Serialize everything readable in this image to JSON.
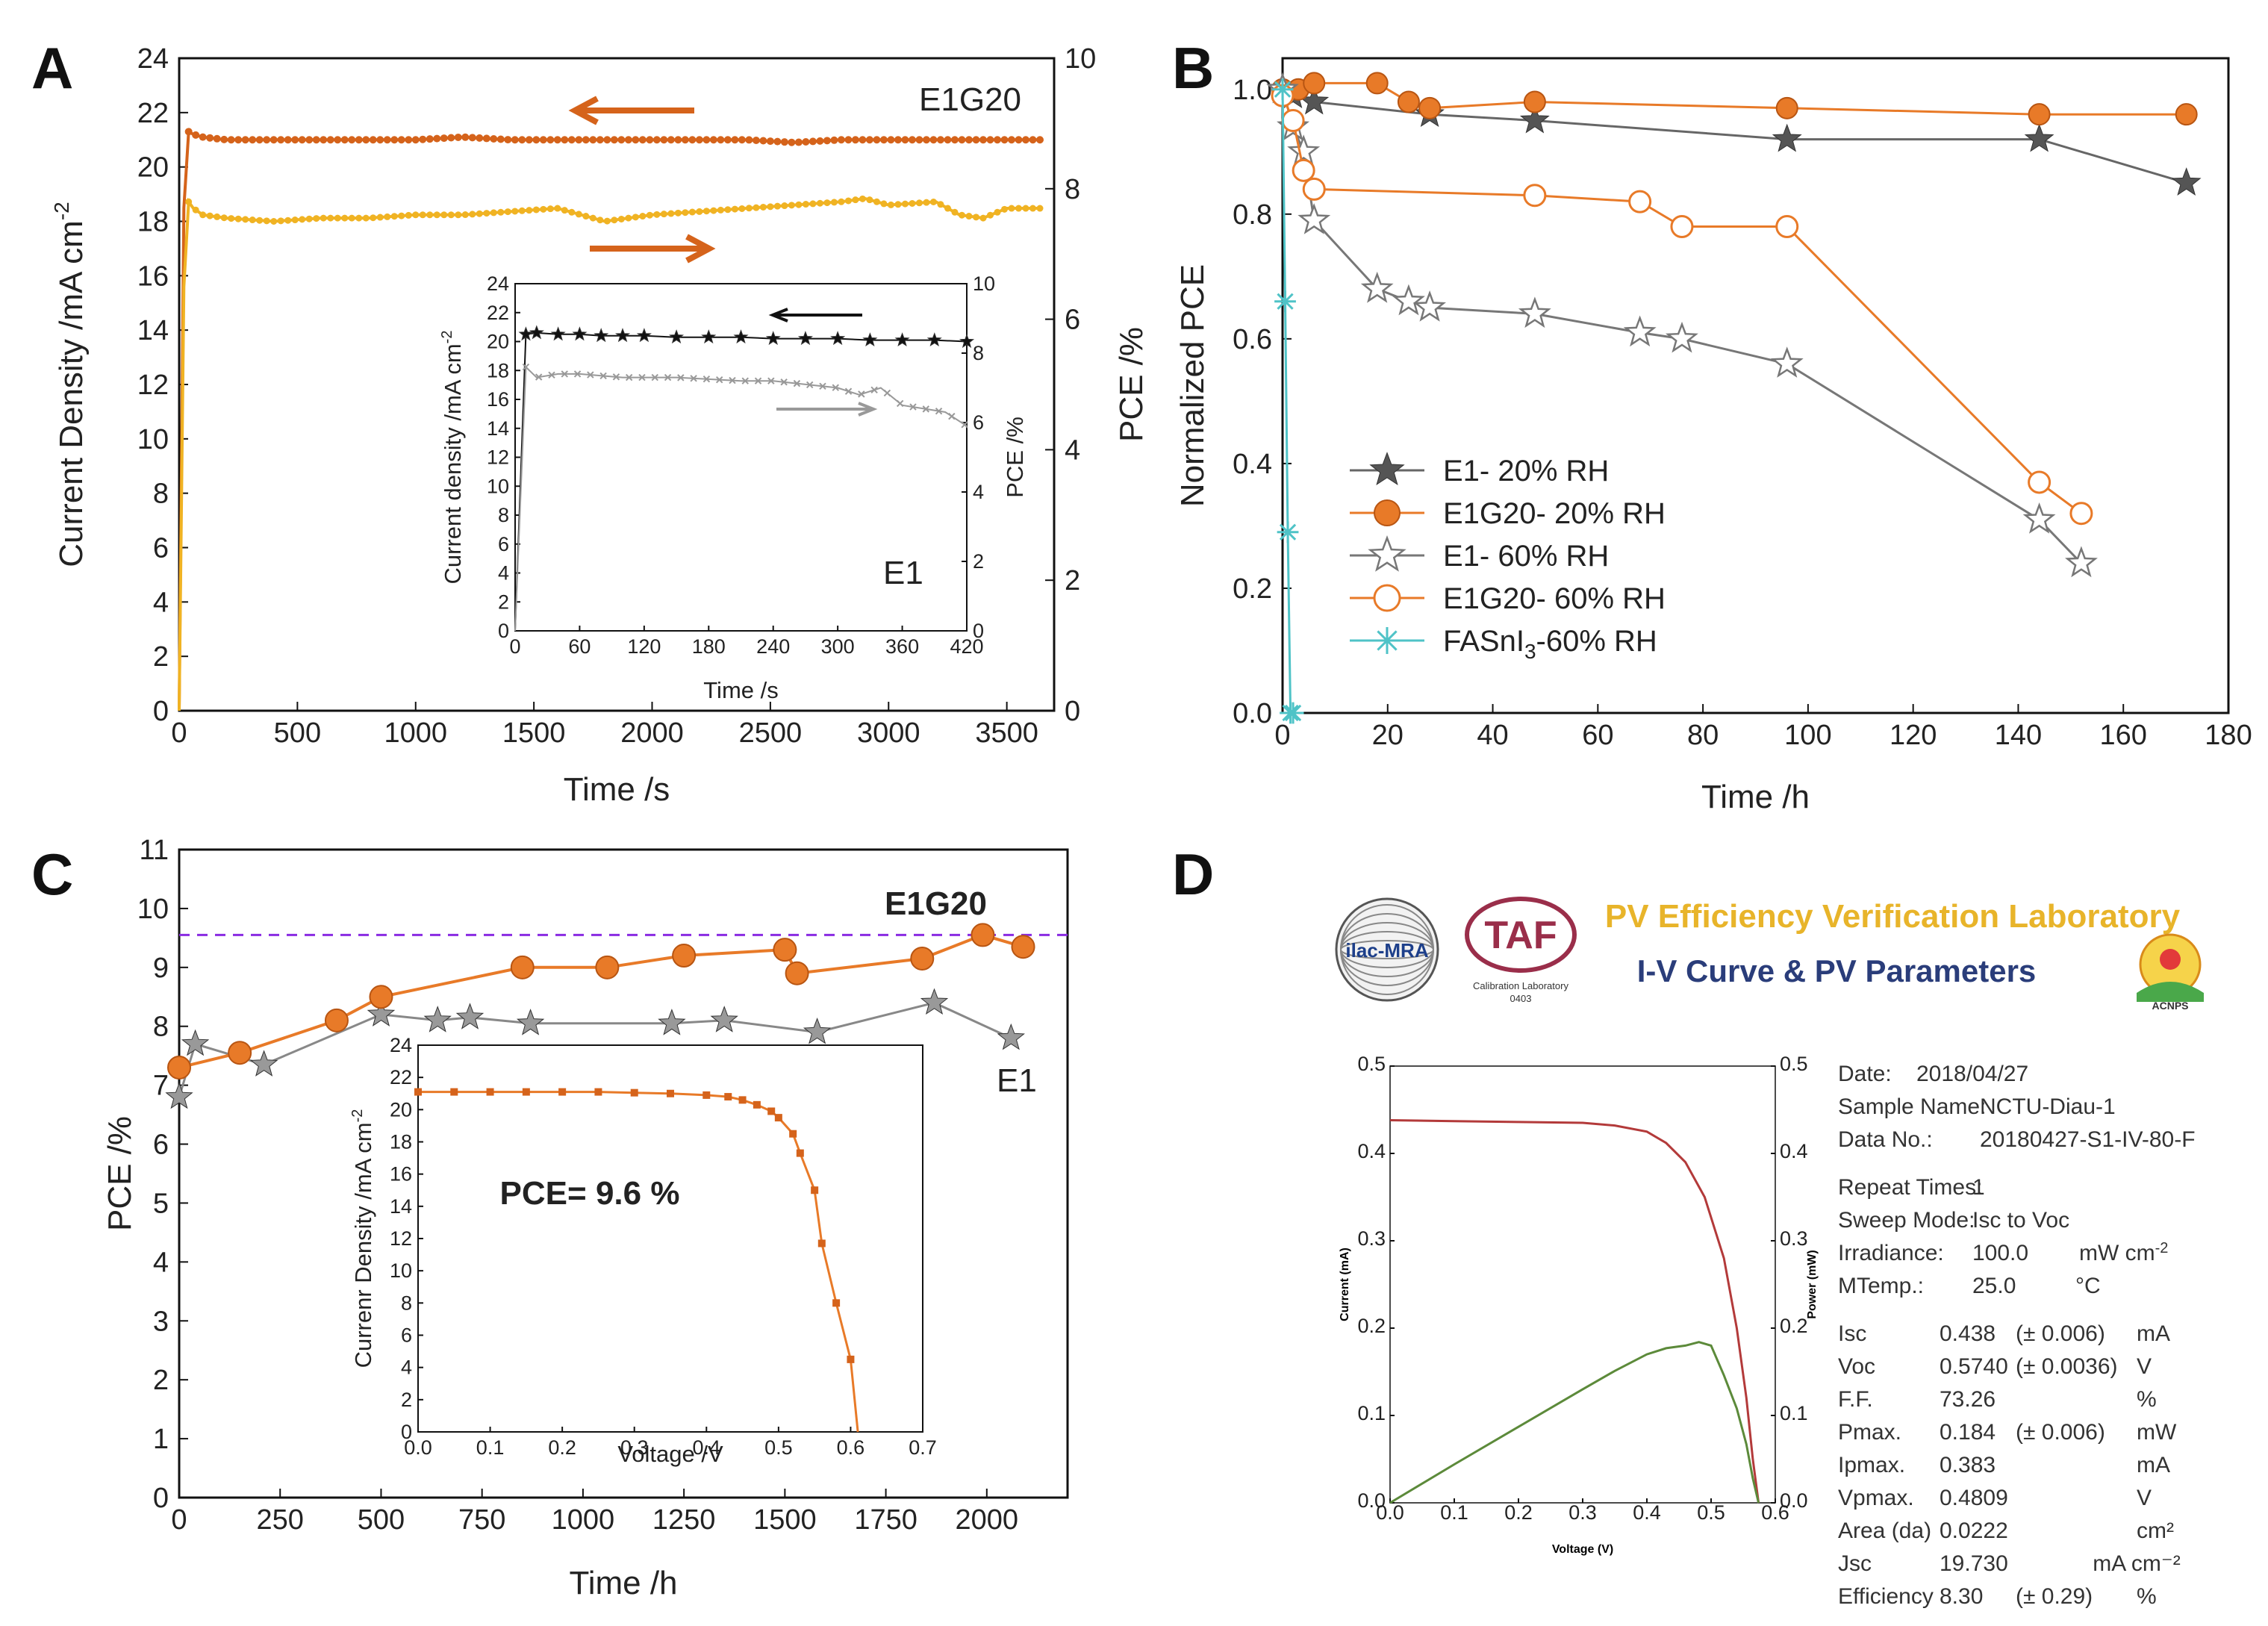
{
  "panels": {
    "A": "A",
    "B": "B",
    "C": "C",
    "D": "D"
  },
  "colors": {
    "orange": "#e87a28",
    "dark_orange": "#d5631b",
    "yellow": "#f0b323",
    "gray": "#8c8c8c",
    "dark_gray": "#555555",
    "cyan": "#4fc3c7",
    "purple": "#8a2be2",
    "black": "#111111"
  },
  "chart_data": [
    {
      "id": "A",
      "type": "line",
      "label": "E1G20",
      "xlabel": "Time /s",
      "ylabel_left": "Current Density /mA cm",
      "ylabel_left_sup": "-2",
      "ylabel_right": "PCE  /%",
      "xlim": [
        0,
        3700
      ],
      "ylim_left": [
        0,
        24
      ],
      "ylim_right": [
        0,
        10
      ],
      "xticks": [
        "0",
        "500",
        "1000",
        "1500",
        "2000",
        "2500",
        "3000",
        "3500"
      ],
      "yticks_left": [
        "0",
        "2",
        "4",
        "6",
        "8",
        "10",
        "12",
        "14",
        "16",
        "18",
        "20",
        "22",
        "24"
      ],
      "yticks_right": [
        "0",
        "2",
        "4",
        "6",
        "8",
        "10"
      ],
      "series": [
        {
          "name": "Current density",
          "axis": "left",
          "x": [
            0,
            20,
            40,
            60,
            100,
            200,
            400,
            600,
            800,
            1000,
            1200,
            1400,
            1600,
            1800,
            2000,
            2200,
            2400,
            2600,
            2800,
            3000,
            3200,
            3400,
            3650
          ],
          "values": [
            0,
            18.5,
            21.3,
            21.2,
            21.1,
            21.0,
            21.0,
            21.0,
            21.0,
            21.0,
            21.1,
            21.0,
            21.0,
            21.0,
            21.0,
            21.0,
            21.0,
            20.9,
            21.0,
            21.0,
            21.0,
            21.0,
            21.0
          ]
        },
        {
          "name": "PCE",
          "axis": "right",
          "x": [
            0,
            20,
            40,
            60,
            100,
            200,
            400,
            600,
            800,
            1000,
            1200,
            1400,
            1600,
            1800,
            2000,
            2200,
            2400,
            2600,
            2800,
            2900,
            3000,
            3200,
            3300,
            3400,
            3500,
            3650
          ],
          "values": [
            0,
            6.5,
            7.8,
            7.7,
            7.6,
            7.55,
            7.5,
            7.55,
            7.55,
            7.6,
            7.6,
            7.65,
            7.7,
            7.5,
            7.6,
            7.65,
            7.7,
            7.75,
            7.8,
            7.85,
            7.75,
            7.8,
            7.6,
            7.55,
            7.7,
            7.7
          ]
        }
      ],
      "inset": {
        "label": "E1",
        "xlabel": "Time /s",
        "ylabel_left": "Current density /mA cm",
        "ylabel_left_sup": "-2",
        "ylabel_right": "PCE /%",
        "xlim": [
          0,
          420
        ],
        "ylim_left": [
          0,
          24
        ],
        "ylim_right": [
          0,
          10
        ],
        "xticks": [
          "0",
          "60",
          "120",
          "180",
          "240",
          "300",
          "360",
          "420"
        ],
        "yticks_left": [
          "0",
          "2",
          "4",
          "6",
          "8",
          "10",
          "12",
          "14",
          "16",
          "18",
          "20",
          "22",
          "24"
        ],
        "yticks_right": [
          "0",
          "2",
          "4",
          "6",
          "8",
          "10"
        ],
        "series": [
          {
            "name": "Current density",
            "axis": "left",
            "x": [
              0,
              10,
              20,
              40,
              60,
              80,
              100,
              120,
              150,
              180,
              210,
              240,
              270,
              300,
              330,
              360,
              390,
              420
            ],
            "values": [
              0,
              20.5,
              20.6,
              20.5,
              20.5,
              20.4,
              20.4,
              20.4,
              20.3,
              20.3,
              20.3,
              20.2,
              20.2,
              20.2,
              20.1,
              20.1,
              20.1,
              20.0
            ]
          },
          {
            "name": "PCE",
            "axis": "right",
            "x": [
              0,
              10,
              20,
              40,
              60,
              80,
              100,
              120,
              150,
              180,
              210,
              240,
              270,
              300,
              320,
              340,
              360,
              380,
              400,
              420
            ],
            "values": [
              0,
              7.6,
              7.3,
              7.4,
              7.4,
              7.35,
              7.3,
              7.3,
              7.3,
              7.25,
              7.2,
              7.2,
              7.1,
              7.0,
              6.8,
              7.0,
              6.5,
              6.4,
              6.3,
              5.9
            ]
          }
        ]
      }
    },
    {
      "id": "B",
      "type": "line",
      "xlabel": "Time /h",
      "ylabel": "Normalized PCE",
      "xlim": [
        0,
        180
      ],
      "ylim": [
        0,
        1.05
      ],
      "xticks": [
        "0",
        "20",
        "40",
        "60",
        "80",
        "100",
        "120",
        "140",
        "160",
        "180"
      ],
      "yticks": [
        "0.0",
        "0.2",
        "0.4",
        "0.6",
        "0.8",
        "1.0"
      ],
      "legend": [
        "E1- 20% RH",
        "E1G20- 20% RH",
        "E1- 60% RH",
        "E1G20- 60% RH",
        "FASnI"
      ],
      "legend_sub": "3",
      "legend_tail": "-60% RH",
      "series": [
        {
          "name": "E1- 20% RH",
          "marker": "star-filled",
          "x": [
            0,
            2,
            6,
            28,
            48,
            96,
            144,
            172
          ],
          "values": [
            1.0,
            0.99,
            0.98,
            0.96,
            0.95,
            0.92,
            0.92,
            0.85
          ]
        },
        {
          "name": "E1G20- 20% RH",
          "marker": "circle-filled",
          "x": [
            0,
            3,
            6,
            18,
            24,
            28,
            48,
            96,
            144,
            172
          ],
          "values": [
            1.0,
            1.0,
            1.01,
            1.01,
            0.98,
            0.97,
            0.98,
            0.97,
            0.96,
            0.96
          ]
        },
        {
          "name": "E1- 60% RH",
          "marker": "star-open",
          "x": [
            0,
            2,
            4,
            6,
            18,
            24,
            28,
            48,
            68,
            76,
            96,
            144,
            152
          ],
          "values": [
            1.0,
            0.94,
            0.9,
            0.79,
            0.68,
            0.66,
            0.65,
            0.64,
            0.61,
            0.6,
            0.56,
            0.31,
            0.24
          ]
        },
        {
          "name": "E1G20- 60% RH",
          "marker": "circle-open",
          "x": [
            0,
            2,
            4,
            6,
            48,
            68,
            76,
            96,
            144,
            152
          ],
          "values": [
            0.99,
            0.95,
            0.87,
            0.84,
            0.83,
            0.82,
            0.78,
            0.78,
            0.37,
            0.32
          ]
        },
        {
          "name": "FASnI3-60% RH",
          "marker": "asterisk",
          "x": [
            0,
            0.5,
            1,
            1.5,
            2
          ],
          "values": [
            1.0,
            0.66,
            0.29,
            0.0,
            0.0
          ]
        }
      ]
    },
    {
      "id": "C",
      "type": "line",
      "xlabel": "Time /h",
      "ylabel": "PCE /%",
      "xlim": [
        0,
        2200
      ],
      "ylim": [
        0,
        11
      ],
      "xticks": [
        "0",
        "250",
        "500",
        "750",
        "1000",
        "1250",
        "1500",
        "1750",
        "2000"
      ],
      "yticks": [
        "0",
        "1",
        "2",
        "3",
        "4",
        "5",
        "6",
        "7",
        "8",
        "9",
        "10",
        "11"
      ],
      "reference_line": 9.55,
      "labels": {
        "e1g20": "E1G20",
        "e1": "E1"
      },
      "series": [
        {
          "name": "E1G20",
          "marker": "circle-filled",
          "x": [
            0,
            150,
            390,
            500,
            850,
            1060,
            1250,
            1500,
            1530,
            1840,
            1990,
            2090
          ],
          "values": [
            7.3,
            7.55,
            8.1,
            8.5,
            9.0,
            9.0,
            9.2,
            9.3,
            8.9,
            9.15,
            9.55,
            9.35
          ]
        },
        {
          "name": "E1",
          "marker": "star-filled",
          "x": [
            0,
            40,
            210,
            500,
            640,
            720,
            870,
            1220,
            1350,
            1580,
            1870,
            2060
          ],
          "values": [
            6.8,
            7.7,
            7.35,
            8.2,
            8.1,
            8.15,
            8.05,
            8.05,
            8.1,
            7.9,
            8.4,
            7.8
          ]
        }
      ],
      "inset": {
        "xlabel": "Voltage /V",
        "ylabel": "Currenr Density /mA cm",
        "ylabel_sup": "-2",
        "annotation": "PCE= 9.6 %",
        "xlim": [
          0,
          0.7
        ],
        "ylim": [
          0,
          24
        ],
        "xticks": [
          "0.0",
          "0.1",
          "0.2",
          "0.3",
          "0.4",
          "0.5",
          "0.6",
          "0.7"
        ],
        "yticks": [
          "0",
          "2",
          "4",
          "6",
          "8",
          "10",
          "12",
          "14",
          "16",
          "18",
          "20",
          "22",
          "24"
        ],
        "x": [
          0.0,
          0.05,
          0.1,
          0.15,
          0.2,
          0.25,
          0.3,
          0.35,
          0.4,
          0.43,
          0.45,
          0.47,
          0.49,
          0.5,
          0.52,
          0.53,
          0.55,
          0.56,
          0.58,
          0.6,
          0.61
        ],
        "values": [
          21.1,
          21.1,
          21.1,
          21.1,
          21.1,
          21.1,
          21.05,
          21.0,
          20.9,
          20.8,
          20.6,
          20.3,
          19.9,
          19.5,
          18.5,
          17.3,
          15.0,
          11.7,
          8.0,
          4.5,
          0.0
        ]
      }
    },
    {
      "id": "D",
      "type": "line",
      "header": {
        "logo_ilac": "ilac-MRA",
        "logo_taf": "TAF",
        "logo_taf_sub": "Calibration Laboratory",
        "logo_taf_num": "0403",
        "logo_right": "ACNPS",
        "title": "PV Efficiency Verification Laboratory",
        "subtitle": "I-V Curve & PV Parameters"
      },
      "xlabel": "Voltage (V)",
      "ylabel_left": "Current (mA)",
      "ylabel_right": "Power (mW)",
      "xlim": [
        0,
        0.6
      ],
      "ylim": [
        0,
        0.5
      ],
      "xticks": [
        "0.0",
        "0.1",
        "0.2",
        "0.3",
        "0.4",
        "0.5",
        "0.6"
      ],
      "yticks_left": [
        "0.0",
        "0.1",
        "0.2",
        "0.3",
        "0.4",
        "0.5"
      ],
      "yticks_right": [
        "0.0",
        "0.1",
        "0.2",
        "0.3",
        "0.4",
        "0.5"
      ],
      "series": [
        {
          "name": "Current",
          "color": "#b33a3a",
          "x": [
            0.0,
            0.1,
            0.2,
            0.3,
            0.35,
            0.4,
            0.43,
            0.46,
            0.49,
            0.52,
            0.54,
            0.555,
            0.565,
            0.574
          ],
          "values": [
            0.438,
            0.437,
            0.436,
            0.435,
            0.432,
            0.425,
            0.412,
            0.39,
            0.35,
            0.28,
            0.2,
            0.12,
            0.05,
            0.0
          ]
        },
        {
          "name": "Power",
          "color": "#5c8a3a",
          "x": [
            0.0,
            0.1,
            0.2,
            0.3,
            0.35,
            0.4,
            0.43,
            0.46,
            0.481,
            0.5,
            0.52,
            0.54,
            0.555,
            0.565,
            0.574
          ],
          "values": [
            0.0,
            0.044,
            0.087,
            0.13,
            0.151,
            0.17,
            0.177,
            0.18,
            0.184,
            0.18,
            0.146,
            0.108,
            0.067,
            0.028,
            0.0
          ]
        }
      ],
      "params": [
        [
          "Date:",
          "2018/04/27",
          "",
          ""
        ],
        [
          "Sample Name:",
          "NCTU-Diau-1",
          "",
          ""
        ],
        [
          "Data No.:",
          "20180427-S1-IV-80-F",
          "",
          ""
        ],
        [
          "Repeat Times:",
          "1",
          "",
          ""
        ],
        [
          "Sweep Mode:",
          "Isc to Voc",
          "",
          ""
        ],
        [
          "Irradiance:",
          "100.0",
          "mW cm",
          "-2"
        ],
        [
          "MTemp.:",
          "25.0",
          "°C",
          ""
        ],
        [
          "Isc",
          "0.438",
          "(± 0.006)",
          "mA"
        ],
        [
          "Voc",
          "0.5740",
          "(± 0.0036)",
          "V"
        ],
        [
          "F.F.",
          "73.26",
          "",
          "%"
        ],
        [
          "Pmax.",
          "0.184",
          "(± 0.006)",
          "mW"
        ],
        [
          "Ipmax.",
          "0.383",
          "",
          "mA"
        ],
        [
          "Vpmax.",
          "0.4809",
          "",
          "V"
        ],
        [
          "Area (da)",
          "0.0222",
          "",
          "cm²"
        ],
        [
          "Jsc",
          "19.730",
          "",
          "mA cm⁻²"
        ],
        [
          "Efficiency",
          "8.30",
          "(± 0.29)",
          "%"
        ]
      ]
    }
  ]
}
